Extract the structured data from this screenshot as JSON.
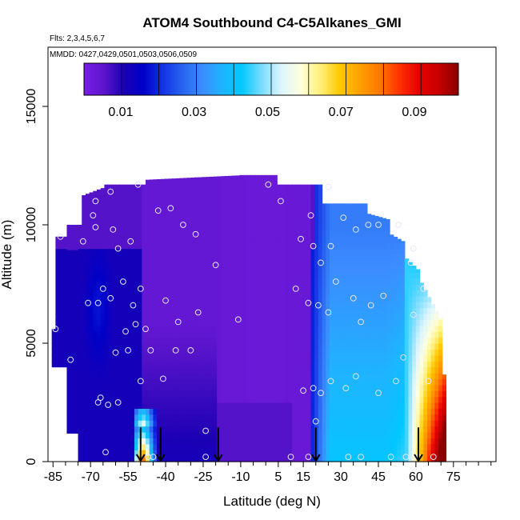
{
  "chart_data": {
    "type": "heatmap",
    "title": "ATOM4 Southbound C4-C5Alkanes_GMI",
    "subtitle_flights": "Flts: 2,3,4,5,6,7",
    "subtitle_dates": "MMDD: 0427,0429,0501,0503,0506,0509",
    "xlabel": "Latitude (deg N)",
    "ylabel": "Altitude (m)",
    "xlim": [
      -87,
      92
    ],
    "ylim": [
      0,
      17500
    ],
    "x_ticks": [
      -85,
      -70,
      -55,
      -40,
      -25,
      -10,
      5,
      15,
      30,
      45,
      60,
      75
    ],
    "y_ticks": [
      0,
      5000,
      10000,
      15000
    ],
    "colorbar": {
      "min": 0.0,
      "max": 0.102,
      "tick_values": [
        0.01,
        0.03,
        0.05,
        0.07,
        0.09
      ],
      "tick_labels": [
        "0.01",
        "0.03",
        "0.05",
        "0.07",
        "0.09"
      ],
      "colors": [
        "#7a1ee6",
        "#5c16cc",
        "#1c00b4",
        "#0000c8",
        "#1432e6",
        "#2864f0",
        "#3c8cff",
        "#1eb4ff",
        "#00c8ff",
        "#78dcff",
        "#dcf5ff",
        "#ffffdc",
        "#fff078",
        "#ffc800",
        "#ffa000",
        "#ff7800",
        "#ff3200",
        "#e60000",
        "#c80000",
        "#8c0000"
      ]
    },
    "flight_arrows_lat": [
      -50,
      -42,
      -19,
      20,
      61
    ],
    "sample_points": [
      [
        -84,
        5600
      ],
      [
        -82,
        9500
      ],
      [
        -78,
        4300
      ],
      [
        -73,
        9300
      ],
      [
        -71,
        6700
      ],
      [
        -69,
        10400
      ],
      [
        -68,
        9900
      ],
      [
        -68,
        11000
      ],
      [
        -67,
        6700
      ],
      [
        -67,
        2500
      ],
      [
        -66,
        2700
      ],
      [
        -65,
        7300
      ],
      [
        -64,
        400
      ],
      [
        -63,
        2400
      ],
      [
        -62,
        11400
      ],
      [
        -62,
        6900
      ],
      [
        -61,
        9800
      ],
      [
        -60,
        4600
      ],
      [
        -59,
        2500
      ],
      [
        -59,
        9000
      ],
      [
        -57,
        7600
      ],
      [
        -56,
        5500
      ],
      [
        -55,
        4700
      ],
      [
        -54,
        9300
      ],
      [
        -53,
        6600
      ],
      [
        -52,
        5800
      ],
      [
        -51,
        11700
      ],
      [
        -50,
        7300
      ],
      [
        -50,
        3400
      ],
      [
        -48,
        5600
      ],
      [
        -47,
        200
      ],
      [
        -46,
        4700
      ],
      [
        -45,
        200
      ],
      [
        -43,
        10600
      ],
      [
        -41,
        3500
      ],
      [
        -40,
        6800
      ],
      [
        -38,
        10700
      ],
      [
        -36,
        4700
      ],
      [
        -35,
        5900
      ],
      [
        -33,
        10000
      ],
      [
        -30,
        4700
      ],
      [
        -28,
        9600
      ],
      [
        -27,
        6300
      ],
      [
        -24,
        1300
      ],
      [
        -24,
        200
      ],
      [
        -20,
        8300
      ],
      [
        -11,
        6000
      ],
      [
        1,
        11700
      ],
      [
        6,
        11000
      ],
      [
        10,
        200
      ],
      [
        12,
        7300
      ],
      [
        14,
        9400
      ],
      [
        15,
        3000
      ],
      [
        17,
        200
      ],
      [
        17,
        6700
      ],
      [
        18,
        10400
      ],
      [
        19,
        3100
      ],
      [
        19,
        9100
      ],
      [
        20,
        1700
      ],
      [
        21,
        6600
      ],
      [
        22,
        2900
      ],
      [
        22,
        8400
      ],
      [
        25,
        11600
      ],
      [
        25,
        6300
      ],
      [
        26,
        9100
      ],
      [
        26,
        3400
      ],
      [
        28,
        7600
      ],
      [
        31,
        10300
      ],
      [
        32,
        3100
      ],
      [
        33,
        200
      ],
      [
        35,
        6900
      ],
      [
        36,
        3600
      ],
      [
        36,
        9800
      ],
      [
        38,
        5900
      ],
      [
        38,
        200
      ],
      [
        41,
        10000
      ],
      [
        42,
        6600
      ],
      [
        45,
        10000
      ],
      [
        45,
        2900
      ],
      [
        47,
        7000
      ],
      [
        50,
        200
      ],
      [
        52,
        3400
      ],
      [
        53,
        10000
      ],
      [
        55,
        4400
      ],
      [
        56,
        200
      ],
      [
        58,
        8400
      ],
      [
        59,
        9000
      ],
      [
        59,
        6200
      ],
      [
        61,
        200
      ],
      [
        63,
        7300
      ],
      [
        65,
        3400
      ],
      [
        67,
        200
      ]
    ]
  }
}
